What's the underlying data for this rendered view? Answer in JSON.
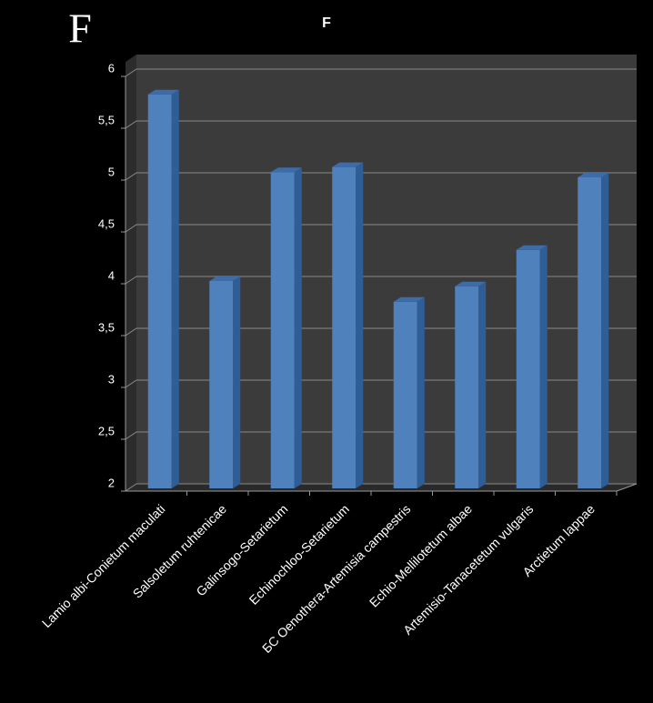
{
  "chart_data": {
    "type": "bar3d",
    "panel_label": "F",
    "title": "F",
    "categories": [
      "Lamio albi-Conietum maculati",
      "Salsoletum ruhtenicae",
      "Galinsogo-Setarietum",
      "Echinochloo-Setarietum",
      "БС Oenothera-Artemisia campestris",
      "Echio-Mellilotetum albae",
      "Artemisio-Tanacetetum vulgaris",
      "Arctietum lappae"
    ],
    "values": [
      5.8,
      4.0,
      5.05,
      5.1,
      3.8,
      3.95,
      4.3,
      5.0
    ],
    "color": "#4f81bd",
    "ylim": [
      2,
      6
    ],
    "yticks": [
      2,
      {
        "value": 2.5,
        "label": "2,5"
      },
      3,
      {
        "value": 3.5,
        "label": "3,5"
      },
      4,
      {
        "value": 4.5,
        "label": "4,5"
      },
      5,
      {
        "value": 5.5,
        "label": "5,5"
      },
      6
    ],
    "grid": true
  }
}
